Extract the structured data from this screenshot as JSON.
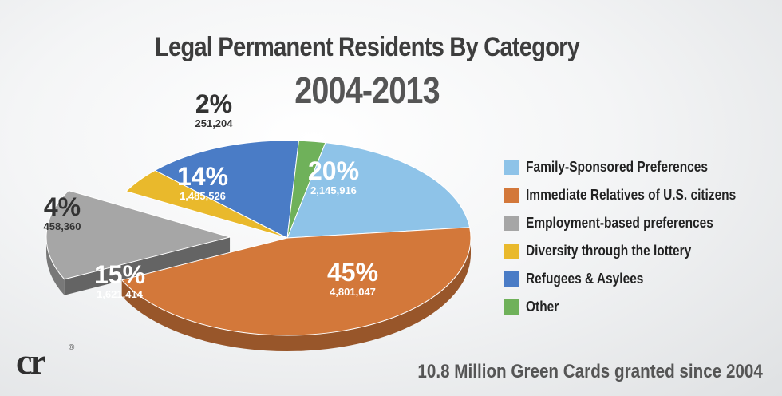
{
  "chart_data": {
    "type": "pie",
    "title": "Legal Permanent Residents By Category",
    "subtitle": "2004-2013",
    "slices": [
      {
        "label": "Family-Sponsored Preferences",
        "percent_label": "20%",
        "value_label": "2,145,916",
        "value": 2145916,
        "color": "#8ec3e8"
      },
      {
        "label": "Immediate Relatives of U.S. citizens",
        "percent_label": "45%",
        "value_label": "4,801,047",
        "value": 4801047,
        "color": "#d3783a"
      },
      {
        "label": "Employment-based preferences",
        "percent_label": "15%",
        "value_label": "1,621,414",
        "value": 1621414,
        "color": "#a6a6a6"
      },
      {
        "label": "Diversity through the lottery",
        "percent_label": "4%",
        "value_label": "458,360",
        "value": 458360,
        "color": "#e9b92c"
      },
      {
        "label": "Refugees & Asylees",
        "percent_label": "14%",
        "value_label": "1,485,526",
        "value": 1485526,
        "color": "#4a7cc6"
      },
      {
        "label": "Other",
        "percent_label": "2%",
        "value_label": "251,204",
        "value": 251204,
        "color": "#6fb15a"
      }
    ],
    "exploded_slice": "Employment-based preferences",
    "legend_position": "right",
    "footer": "10.8 Million Green Cards granted since 2004"
  },
  "logo": {
    "text": "cr",
    "mark": "®"
  }
}
